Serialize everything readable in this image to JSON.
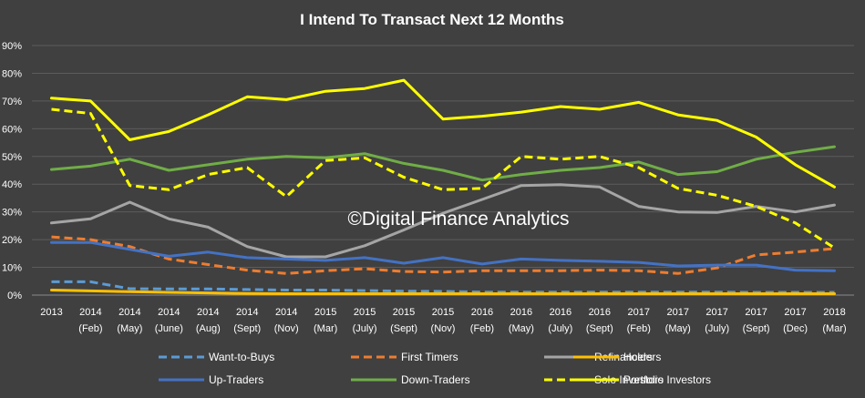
{
  "chart_data": {
    "type": "line",
    "title": "I Intend To Transact Next 12 Months",
    "watermark": "©Digital Finance Analytics",
    "ylim": [
      0,
      90
    ],
    "yticks": [
      "0%",
      "10%",
      "20%",
      "30%",
      "40%",
      "50%",
      "60%",
      "70%",
      "80%",
      "90%"
    ],
    "grid": true,
    "legend_position": "bottom",
    "categories": [
      [
        "2013",
        ""
      ],
      [
        "2014",
        "(Feb)"
      ],
      [
        "2014",
        "(May)"
      ],
      [
        "2014",
        "(June)"
      ],
      [
        "2014",
        "(Aug)"
      ],
      [
        "2014",
        "(Sept)"
      ],
      [
        "2014",
        "(Nov)"
      ],
      [
        "2015",
        "(Mar)"
      ],
      [
        "2015",
        "(July)"
      ],
      [
        "2015",
        "(Sept)"
      ],
      [
        "2015",
        "(Nov)"
      ],
      [
        "2016",
        "(Feb)"
      ],
      [
        "2016",
        "(May)"
      ],
      [
        "2016",
        "(July)"
      ],
      [
        "2016",
        "(Sept)"
      ],
      [
        "2017",
        "(Feb)"
      ],
      [
        "2017",
        "(May)"
      ],
      [
        "2017",
        "(July)"
      ],
      [
        "2017",
        "(Sept)"
      ],
      [
        "2017",
        "(Dec)"
      ],
      [
        "2018",
        "(Mar)"
      ]
    ],
    "series": [
      {
        "name": "Want-to-Buys",
        "color": "#5b9bd5",
        "dash": "dashed",
        "values": [
          4.8,
          4.8,
          2.3,
          2.2,
          2.2,
          2.0,
          1.8,
          1.8,
          1.6,
          1.4,
          1.3,
          1.1,
          1.1,
          1.1,
          1.1,
          1.1,
          1.1,
          1.1,
          1.0,
          1.0,
          1.0
        ]
      },
      {
        "name": "First Timers",
        "color": "#ed7d31",
        "dash": "dashed",
        "values": [
          21,
          20,
          17.5,
          13,
          11,
          9,
          7.8,
          8.8,
          9.5,
          8.5,
          8.3,
          8.8,
          8.8,
          8.8,
          9,
          8.8,
          7.8,
          9.8,
          14.5,
          15.5,
          16.8
        ]
      },
      {
        "name": "Refinancers",
        "color": "#a5a5a5",
        "dash": "solid",
        "values": [
          26,
          27.5,
          33.5,
          27.5,
          24.5,
          17.5,
          13.8,
          13.8,
          17.8,
          23.5,
          29.5,
          34.5,
          39.5,
          39.8,
          39,
          32,
          30,
          29.8,
          32,
          30,
          32.5
        ]
      },
      {
        "name": "Holders",
        "color": "#ffc000",
        "dash": "solid",
        "values": [
          1.8,
          1.5,
          1.2,
          1.0,
          0.8,
          0.6,
          0.5,
          0.5,
          0.5,
          0.5,
          0.5,
          0.5,
          0.5,
          0.5,
          0.5,
          0.5,
          0.5,
          0.5,
          0.5,
          0.5,
          0.5
        ]
      },
      {
        "name": "Up-Traders",
        "color": "#4472c4",
        "dash": "solid",
        "values": [
          19,
          19,
          16.5,
          14,
          15.5,
          13.5,
          13,
          12.5,
          13.5,
          11.5,
          13.5,
          11.2,
          13,
          12.5,
          12.2,
          11.8,
          10.5,
          10.8,
          10.8,
          9,
          8.8
        ]
      },
      {
        "name": "Down-Traders",
        "color": "#70ad47",
        "dash": "solid",
        "values": [
          45.3,
          46.5,
          49,
          45,
          47,
          49,
          50,
          49.5,
          51,
          47.5,
          45,
          41.5,
          43.5,
          45,
          46,
          48,
          43.5,
          44.5,
          49,
          51.5,
          53.5
        ]
      },
      {
        "name": "Solo Investors",
        "color": "#ffff00",
        "dash": "dashed",
        "values": [
          67,
          65.5,
          39.5,
          38,
          43.5,
          46,
          35.5,
          48.5,
          49.5,
          42.5,
          38,
          38.5,
          50,
          49,
          50,
          46,
          38.5,
          36,
          32,
          26,
          17
        ]
      },
      {
        "name": "Portfolio Investors",
        "color": "#ffff00",
        "dash": "solid",
        "values": [
          71,
          70,
          56,
          59,
          65,
          71.5,
          70.5,
          73.5,
          74.5,
          77.5,
          63.5,
          64.5,
          66,
          68,
          67,
          69.5,
          65,
          63,
          57,
          47,
          39
        ]
      }
    ]
  }
}
